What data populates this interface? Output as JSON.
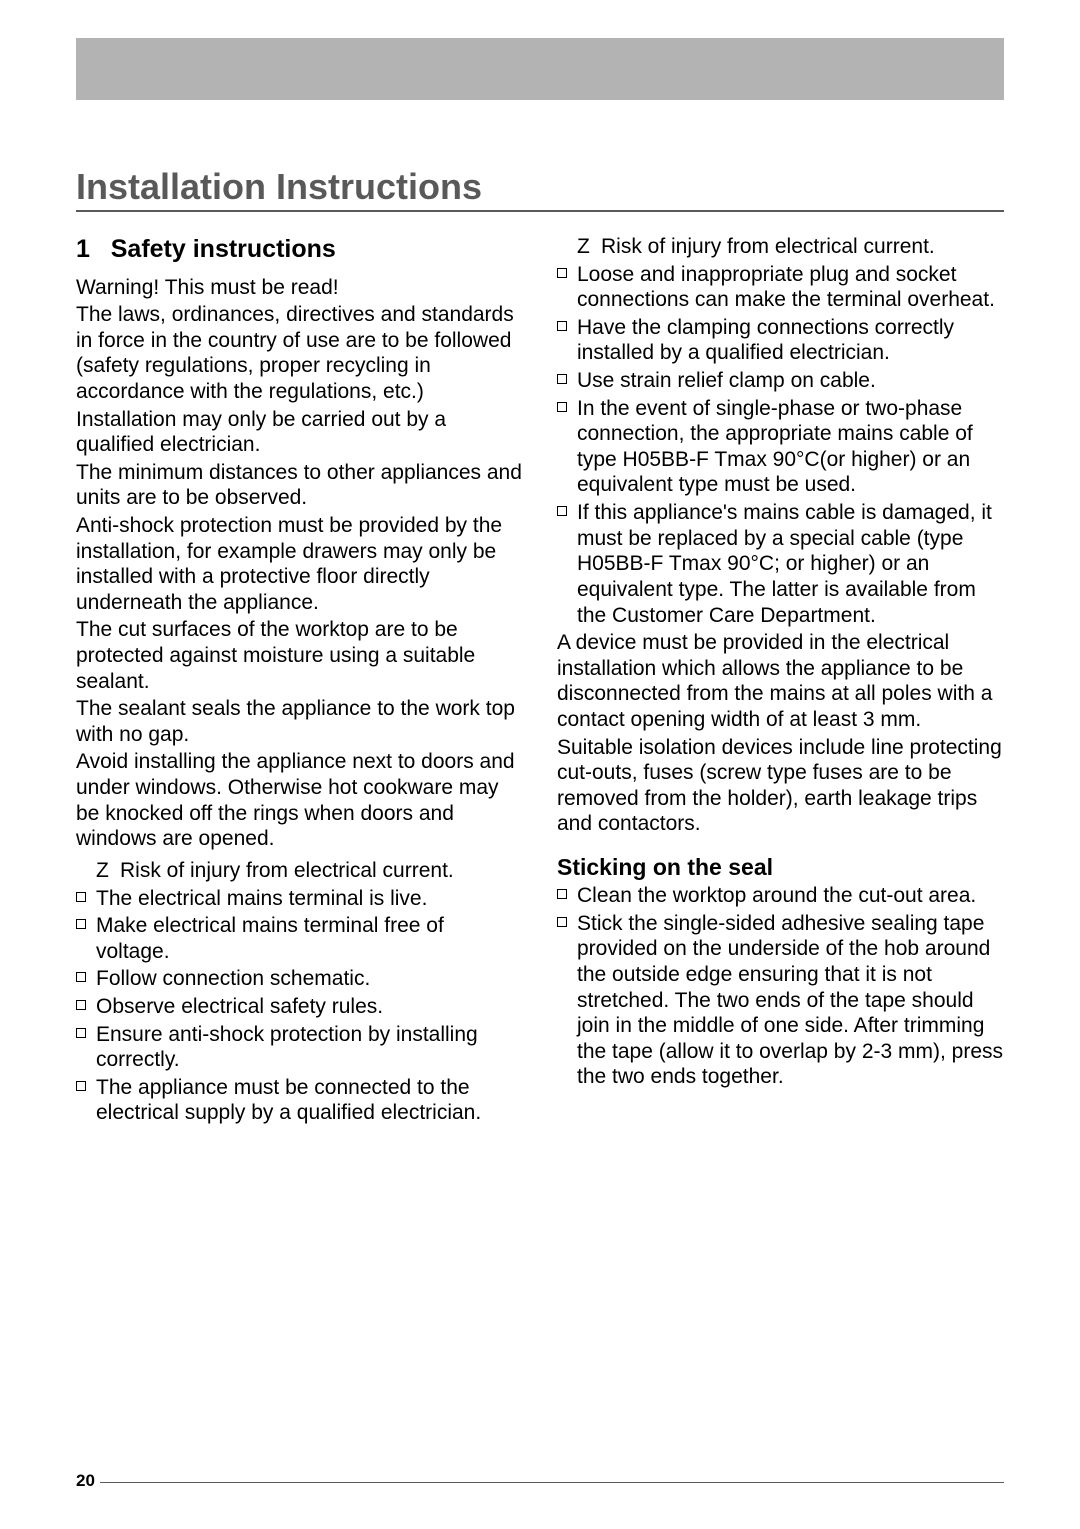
{
  "title": "Installation Instructions",
  "pageNumber": "20",
  "colors": {
    "banner": "#b3b3b3",
    "titleColor": "#595959",
    "ruleColor": "#595959",
    "text": "#000000",
    "background": "#ffffff"
  },
  "left": {
    "heading_marker": "1",
    "heading": "Safety instructions",
    "paras": [
      "Warning! This must be read!",
      "The laws, ordinances, directives and standards in force in the country of use are to be followed (safety regulations, proper recycling in accordance with the regulations, etc.)",
      "Installation may only be carried out by a qualified electrician.",
      "The minimum distances to other appliances and units are to be observed.",
      "Anti-shock protection must be provided by the installation, for example drawers may only be installed with a protective floor directly underneath the appliance.",
      "The cut surfaces of the worktop are to be protected against moisture using a suitable sealant.",
      "The sealant seals the appliance to the work top with no gap.",
      "Avoid installing the appliance next to doors and under windows. Otherwise hot cookware may be knocked off the rings when doors and windows are opened."
    ],
    "warning_marker": "Z",
    "warning_text": "Risk of injury from electrical current.",
    "bullets": [
      "The electrical mains terminal is live.",
      "Make electrical mains terminal free of voltage.",
      "Follow connection schematic.",
      "Observe electrical safety rules.",
      "Ensure anti-shock protection by installing correctly.",
      "The appliance must be connected to the electrical supply by a qualified electrician."
    ]
  },
  "right": {
    "warning_marker": "Z",
    "warning_text": "Risk of injury from electrical current.",
    "bullets": [
      "Loose and inappropriate plug and socket connections can make the terminal overheat.",
      "Have the clamping connections correctly installed by a qualified electrician.",
      "Use strain relief clamp on cable.",
      "In the event of single-phase or two-phase connection, the appropriate mains cable of type H05BB-F Tmax 90°C(or higher) or an equivalent type must be used.",
      "If this appliance's mains cable is damaged, it must be replaced by a special cable (type H05BB-F Tmax 90°C; or higher) or an equivalent type. The latter is available from the Customer Care Department."
    ],
    "paras": [
      "A device must be provided in the electrical installation which allows the appliance to be disconnected from the mains at all poles with a contact opening width of at least 3 mm.",
      "Suitable isolation devices include line protecting cut-outs, fuses (screw type fuses are to be removed from the holder), earth leakage trips and contactors."
    ],
    "subheading": "Sticking on the seal",
    "bullets2": [
      "Clean the worktop around the cut-out area.",
      "Stick the single-sided adhesive sealing tape provided on the underside of the hob around the outside edge ensuring that it is not stretched.  The two ends of the tape should join in the middle of one side.  After trimming the tape (allow it to overlap by 2-3 mm), press the two ends together."
    ]
  }
}
